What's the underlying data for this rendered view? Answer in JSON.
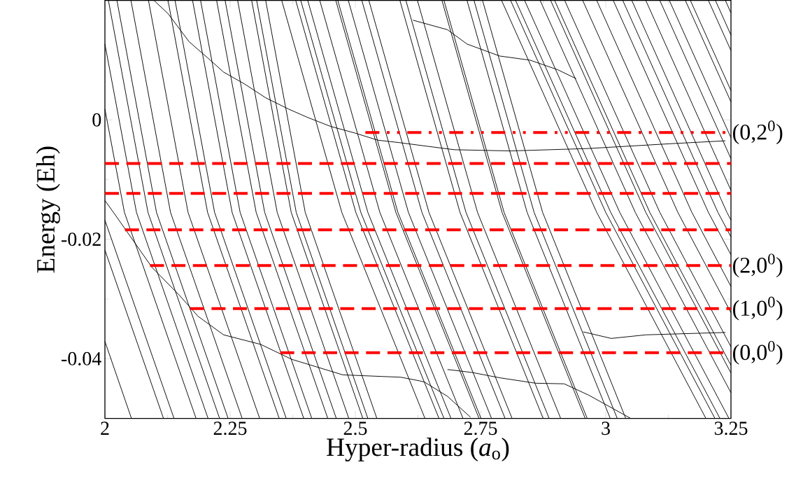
{
  "chart_data": {
    "type": "line",
    "xlabel": "Hyper-radius (*a*$_{o}$)",
    "ylabel": "Energy (Eh)",
    "xlim": [
      2,
      3.25
    ],
    "ylim": [
      -0.05,
      0.02
    ],
    "xticks": [
      2,
      2.25,
      2.5,
      2.75,
      3,
      3.25
    ],
    "yticks": [
      -0.04,
      -0.02,
      0
    ],
    "grid": false,
    "line_style": "solid",
    "series": [
      {
        "color": "#000000",
        "x": [
          2,
          2.053
        ],
        "values": [
          -0.0371,
          -0.05
        ]
      },
      {
        "color": "#000000",
        "x": [
          2,
          2.117
        ],
        "values": [
          -0.0218,
          -0.05
        ]
      },
      {
        "color": "#000000",
        "x": [
          2,
          2.138
        ],
        "values": [
          -0.0168,
          -0.05
        ]
      },
      {
        "color": "#000000",
        "x": [
          2,
          2.039,
          2.182
        ],
        "values": [
          0.0018,
          -0.0155,
          -0.05
        ]
      },
      {
        "color": "#000000",
        "x": [
          2,
          2.063,
          2.206
        ],
        "values": [
          0.0127,
          -0.0155,
          -0.05
        ]
      },
      {
        "color": "#000000",
        "x": [
          2.007,
          2.086,
          2.229
        ],
        "values": [
          0.02,
          -0.0155,
          -0.05
        ]
      },
      {
        "color": "#000000",
        "x": [
          2.024,
          2.103,
          2.246
        ],
        "values": [
          0.02,
          -0.0155,
          -0.05
        ]
      },
      {
        "color": "#000000",
        "x": [
          2.052,
          2.131,
          2.274
        ],
        "values": [
          0.02,
          -0.0155,
          -0.05
        ]
      },
      {
        "color": "#000000",
        "x": [
          2.087,
          2.166,
          2.309
        ],
        "values": [
          0.02,
          -0.0155,
          -0.05
        ]
      },
      {
        "color": "#000000",
        "x": [
          2.126,
          2.205,
          2.348
        ],
        "values": [
          0.02,
          -0.0155,
          -0.05
        ]
      },
      {
        "color": "#000000",
        "x": [
          2.14,
          2.219,
          2.362
        ],
        "values": [
          0.02,
          -0.0155,
          -0.05
        ]
      },
      {
        "color": "#000000",
        "x": [
          2.175,
          2.254,
          2.397
        ],
        "values": [
          0.02,
          -0.0155,
          -0.05
        ]
      },
      {
        "color": "#000000",
        "x": [
          2.191,
          2.27,
          2.413
        ],
        "values": [
          0.02,
          -0.0155,
          -0.05
        ]
      },
      {
        "color": "#000000",
        "x": [
          2.223,
          2.302,
          2.445
        ],
        "values": [
          0.02,
          -0.0155,
          -0.05
        ]
      },
      {
        "color": "#000000",
        "x": [
          2.24,
          2.319,
          2.462
        ],
        "values": [
          0.02,
          -0.0155,
          -0.05
        ]
      },
      {
        "color": "#000000",
        "x": [
          2.265,
          2.344,
          2.487
        ],
        "values": [
          0.02,
          -0.0155,
          -0.05
        ]
      },
      {
        "color": "#000000",
        "x": [
          2.293,
          2.372,
          2.515
        ],
        "values": [
          0.02,
          -0.0155,
          -0.05
        ]
      },
      {
        "color": "#000000",
        "x": [
          2.303,
          2.382,
          2.525
        ],
        "values": [
          0.02,
          -0.0155,
          -0.05
        ]
      },
      {
        "color": "#000000",
        "x": [
          2.321,
          2.4,
          2.543
        ],
        "values": [
          0.02,
          -0.0155,
          -0.05
        ]
      },
      {
        "color": "#000000",
        "x": [
          2.353,
          2.473,
          2.639
        ],
        "values": [
          0.02,
          -0.0155,
          -0.05
        ]
      },
      {
        "color": "#000000",
        "x": [
          2.381,
          2.501,
          2.667
        ],
        "values": [
          0.02,
          -0.0155,
          -0.05
        ]
      },
      {
        "color": "#000000",
        "x": [
          2.391,
          2.511,
          2.677
        ],
        "values": [
          0.02,
          -0.0155,
          -0.05
        ]
      },
      {
        "color": "#000000",
        "x": [
          2.405,
          2.525,
          2.691
        ],
        "values": [
          0.02,
          -0.0155,
          -0.05
        ]
      },
      {
        "color": "#000000",
        "x": [
          2.429,
          2.549,
          2.715
        ],
        "values": [
          0.02,
          -0.0155,
          -0.05
        ]
      },
      {
        "color": "#000000",
        "x": [
          2.461,
          2.581,
          2.747
        ],
        "values": [
          0.02,
          -0.0155,
          -0.05
        ]
      },
      {
        "color": "#000000",
        "x": [
          2.465,
          2.585,
          2.751
        ],
        "values": [
          0.02,
          -0.0155,
          -0.05
        ]
      },
      {
        "color": "#000000",
        "x": [
          2.486,
          2.606,
          2.772
        ],
        "values": [
          0.02,
          -0.0155,
          -0.05
        ]
      },
      {
        "color": "#000000",
        "x": [
          2.513,
          2.633,
          2.799
        ],
        "values": [
          0.02,
          -0.0155,
          -0.05
        ]
      },
      {
        "color": "#000000",
        "x": [
          2.527,
          2.647,
          2.813
        ],
        "values": [
          0.02,
          -0.0155,
          -0.05
        ]
      },
      {
        "color": "#000000",
        "x": [
          2.589,
          2.709,
          2.875
        ],
        "values": [
          0.02,
          -0.0155,
          -0.05
        ]
      },
      {
        "color": "#000000",
        "x": [
          2.601,
          2.721,
          2.887
        ],
        "values": [
          0.02,
          -0.0155,
          -0.05
        ]
      },
      {
        "color": "#000000",
        "x": [
          2.624,
          2.744,
          2.91
        ],
        "values": [
          0.02,
          -0.0155,
          -0.05
        ]
      },
      {
        "color": "#000000",
        "x": [
          2.673,
          2.793,
          2.959
        ],
        "values": [
          0.02,
          -0.0155,
          -0.05
        ]
      },
      {
        "color": "#000000",
        "x": [
          2.677,
          2.797,
          2.963
        ],
        "values": [
          0.02,
          -0.0155,
          -0.05
        ]
      },
      {
        "color": "#000000",
        "x": [
          2.723,
          2.843,
          3.009
        ],
        "values": [
          0.02,
          -0.0155,
          -0.05
        ]
      },
      {
        "color": "#000000",
        "x": [
          2.737,
          2.857,
          3.023
        ],
        "values": [
          0.02,
          -0.0155,
          -0.05
        ]
      },
      {
        "color": "#000000",
        "x": [
          2.754,
          2.874,
          3.04
        ],
        "values": [
          0.02,
          -0.0155,
          -0.05
        ]
      },
      {
        "color": "#000000",
        "x": [
          2.792,
          2.982,
          3.2
        ],
        "values": [
          0.02,
          -0.0155,
          -0.05
        ]
      },
      {
        "color": "#000000",
        "x": [
          2.81,
          3.0,
          3.218
        ],
        "values": [
          0.02,
          -0.0155,
          -0.05
        ]
      },
      {
        "color": "#000000",
        "x": [
          2.82,
          3.01,
          3.228
        ],
        "values": [
          0.02,
          -0.0155,
          -0.05
        ]
      },
      {
        "color": "#000000",
        "x": [
          2.838,
          3.028,
          3.246
        ],
        "values": [
          0.02,
          -0.0155,
          -0.05
        ]
      },
      {
        "color": "#000000",
        "x": [
          2.869,
          3.059,
          3.25
        ],
        "values": [
          0.02,
          -0.0155,
          -0.0457
        ]
      },
      {
        "color": "#000000",
        "x": [
          2.89,
          3.08,
          3.25
        ],
        "values": [
          0.02,
          -0.0155,
          -0.0424
        ]
      },
      {
        "color": "#000000",
        "x": [
          2.898,
          3.088,
          3.25
        ],
        "values": [
          0.02,
          -0.0155,
          -0.0411
        ]
      },
      {
        "color": "#000000",
        "x": [
          2.918,
          3.108,
          3.25
        ],
        "values": [
          0.02,
          -0.0155,
          -0.038
        ]
      },
      {
        "color": "#000000",
        "x": [
          2.954,
          3.144,
          3.25
        ],
        "values": [
          0.02,
          -0.0155,
          -0.0323
        ]
      },
      {
        "color": "#000000",
        "x": [
          2.982,
          3.172,
          3.25
        ],
        "values": [
          0.02,
          -0.0155,
          -0.0279
        ]
      },
      {
        "color": "#000000",
        "x": [
          3.015,
          3.205,
          3.25
        ],
        "values": [
          0.02,
          -0.0155,
          -0.0226
        ]
      },
      {
        "color": "#000000",
        "x": [
          3.034,
          3.224,
          3.25
        ],
        "values": [
          0.02,
          -0.0155,
          -0.0196
        ]
      },
      {
        "color": "#000000",
        "x": [
          3.052,
          3.242,
          3.25
        ],
        "values": [
          0.02,
          -0.0155,
          -0.0168
        ]
      },
      {
        "color": "#000000",
        "x": [
          3.08,
          3.25
        ],
        "values": [
          0.02,
          -0.0118
        ]
      },
      {
        "color": "#000000",
        "x": [
          3.108,
          3.25
        ],
        "values": [
          0.02,
          -0.0065
        ]
      },
      {
        "color": "#000000",
        "x": [
          3.127,
          3.25
        ],
        "values": [
          0.02,
          -0.003
        ]
      },
      {
        "color": "#000000",
        "x": [
          3.159,
          3.25
        ],
        "values": [
          0.02,
          0.003
        ]
      },
      {
        "color": "#000000",
        "x": [
          3.169,
          3.25
        ],
        "values": [
          0.02,
          0.0049
        ]
      },
      {
        "color": "#000000",
        "x": [
          3.205,
          3.25
        ],
        "values": [
          0.02,
          0.0116
        ]
      },
      {
        "color": "#000000",
        "x": [
          3.219,
          3.25
        ],
        "values": [
          0.02,
          0.0142
        ]
      },
      {
        "color": "#000000",
        "x": [
          3.239,
          3.25
        ],
        "values": [
          0.02,
          0.0179
        ]
      },
      {
        "color": "#000000",
        "x": [
          2.098,
          2.126,
          2.168,
          2.205,
          2.237,
          2.279,
          2.321,
          2.367,
          2.405,
          2.451,
          2.499,
          2.545,
          2.587,
          2.642,
          2.698,
          2.81,
          2.964,
          3.127,
          3.239
        ],
        "values": [
          0.02,
          0.0178,
          0.0131,
          0.0104,
          0.008,
          0.006,
          0.0037,
          0.0018,
          0.0004,
          -0.0011,
          -0.0022,
          -0.0034,
          -0.0038,
          -0.0044,
          -0.005,
          -0.0052,
          -0.0048,
          -0.004,
          -0.0035
        ]
      },
      {
        "color": "#000000",
        "x": [
          2.0,
          2.018,
          2.094,
          2.149,
          2.186,
          2.237,
          2.311,
          2.373,
          2.475,
          2.591,
          2.628,
          2.638,
          2.684,
          2.73
        ],
        "values": [
          -0.0135,
          -0.0156,
          -0.0247,
          -0.0294,
          -0.0329,
          -0.036,
          -0.0376,
          -0.0401,
          -0.0427,
          -0.0431,
          -0.0437,
          -0.0439,
          -0.0463,
          -0.0498
        ]
      },
      {
        "color": "#000000",
        "x": [
          2.684,
          2.733,
          2.789,
          2.86,
          2.917,
          2.966,
          3.05
        ],
        "values": [
          -0.0418,
          -0.0423,
          -0.0432,
          -0.0441,
          -0.0442,
          -0.0461,
          -0.05
        ]
      },
      {
        "color": "#000000",
        "x": [
          2.615,
          2.684,
          2.723,
          2.788,
          2.849,
          2.904,
          2.941
        ],
        "values": [
          0.0167,
          0.0151,
          0.0127,
          0.0107,
          0.01,
          0.0084,
          0.0069
        ]
      },
      {
        "color": "#000000",
        "x": [
          2.955,
          3.011,
          3.08,
          3.239
        ],
        "values": [
          -0.0355,
          -0.0366,
          -0.036,
          -0.0356
        ]
      },
      {
        "name": "(0,2$^{0}$)",
        "color": "#ff0000",
        "line_style": "dashdot",
        "x": [
          2.52,
          3.25
        ],
        "values": [
          -0.0021,
          -0.0021
        ]
      },
      {
        "color": "#ff0000",
        "line_style": "dashed",
        "x": [
          2.0,
          3.25
        ],
        "values": [
          -0.0073,
          -0.0073
        ]
      },
      {
        "color": "#ff0000",
        "line_style": "dashed",
        "x": [
          2.0,
          3.25
        ],
        "values": [
          -0.0123,
          -0.0123
        ]
      },
      {
        "color": "#ff0000",
        "line_style": "dashed",
        "x": [
          2.04,
          3.25
        ],
        "values": [
          -0.0184,
          -0.0184
        ]
      },
      {
        "name": "(2,0$^{0}$)",
        "color": "#ff0000",
        "line_style": "dashed",
        "x": [
          2.09,
          3.25
        ],
        "values": [
          -0.0244,
          -0.0244
        ]
      },
      {
        "name": "(1,0$^{0}$)",
        "color": "#ff0000",
        "line_style": "dashed",
        "x": [
          2.17,
          3.25
        ],
        "values": [
          -0.0316,
          -0.0316
        ]
      },
      {
        "name": "(0,0$^{0}$)",
        "color": "#ff0000",
        "line_style": "dashed",
        "x": [
          2.35,
          3.25
        ],
        "values": [
          -0.039,
          -0.039
        ]
      }
    ]
  }
}
